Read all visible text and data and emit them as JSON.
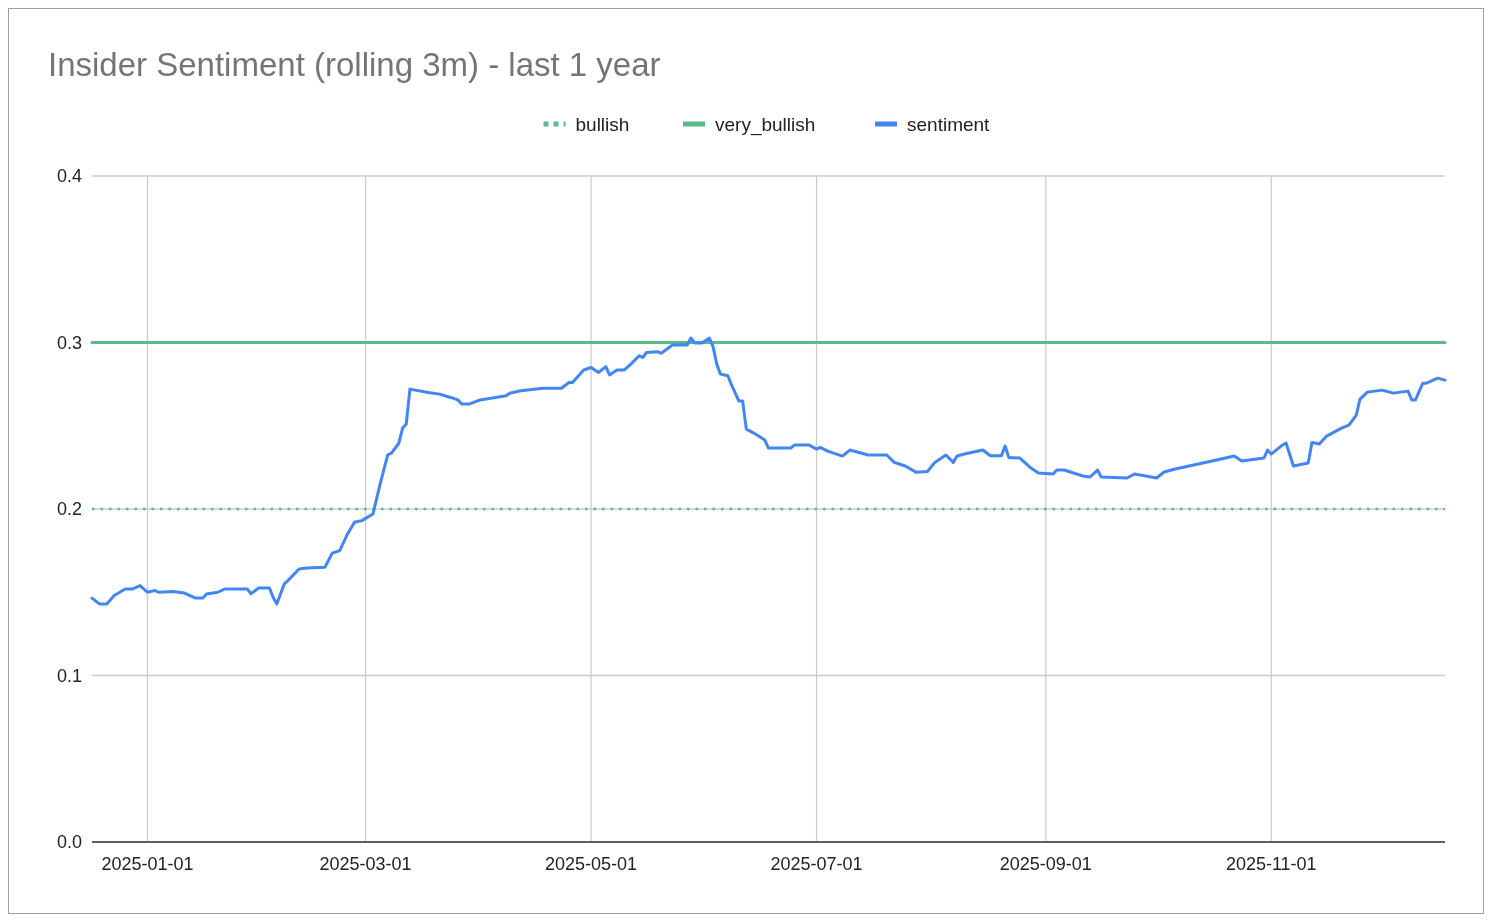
{
  "chart_data": {
    "type": "line",
    "title": "Insider Sentiment (rolling 3m) - last 1 year",
    "xlim": [
      "2024-12-17",
      "2025-12-18"
    ],
    "xticks": [
      "2025-01-01",
      "2025-03-01",
      "2025-05-01",
      "2025-07-01",
      "2025-09-01",
      "2025-11-01"
    ],
    "ylim": [
      0,
      0.4
    ],
    "yticks": [
      {
        "value": 0,
        "label": "0.0"
      },
      0.1,
      0.2,
      0.3,
      0.4
    ],
    "grid": true,
    "legend": "top",
    "series": [
      {
        "name": "bullish",
        "color": "#57bb8a",
        "line_style": "dotted",
        "x": [
          "2024-12-17",
          "2025-12-18"
        ],
        "values": [
          0.2,
          0.2
        ]
      },
      {
        "name": "very_bullish",
        "color": "#57bb8a",
        "line_style": "solid",
        "x": [
          "2024-12-17",
          "2025-12-18"
        ],
        "values": [
          0.3,
          0.3
        ]
      },
      {
        "name": "sentiment",
        "color": "#4285f4",
        "line_style": "solid",
        "x": [
          "2024-12-17",
          "2024-12-19",
          "2024-12-21",
          "2024-12-23",
          "2024-12-26",
          "2024-12-28",
          "2024-12-30",
          "2025-01-01",
          "2025-01-03",
          "2025-01-04",
          "2025-01-08",
          "2025-01-11",
          "2025-01-14",
          "2025-01-16",
          "2025-01-17",
          "2025-01-20",
          "2025-01-22",
          "2025-01-28",
          "2025-01-29",
          "2025-01-31",
          "2025-02-03",
          "2025-02-04",
          "2025-02-05",
          "2025-02-07",
          "2025-02-08",
          "2025-02-11",
          "2025-02-13",
          "2025-02-18",
          "2025-02-20",
          "2025-02-22",
          "2025-02-24",
          "2025-02-26",
          "2025-02-28",
          "2025-03-03",
          "2025-03-05",
          "2025-03-07",
          "2025-03-08",
          "2025-03-10",
          "2025-03-11",
          "2025-03-12",
          "2025-03-13",
          "2025-03-18",
          "2025-03-21",
          "2025-03-24",
          "2025-03-26",
          "2025-03-27",
          "2025-03-29",
          "2025-04-01",
          "2025-04-08",
          "2025-04-09",
          "2025-04-12",
          "2025-04-18",
          "2025-04-23",
          "2025-04-25",
          "2025-04-26",
          "2025-04-29",
          "2025-05-01",
          "2025-05-03",
          "2025-05-05",
          "2025-05-06",
          "2025-05-08",
          "2025-05-10",
          "2025-05-12",
          "2025-05-14",
          "2025-05-15",
          "2025-05-16",
          "2025-05-19",
          "2025-05-20",
          "2025-05-23",
          "2025-05-27",
          "2025-05-28",
          "2025-05-29",
          "2025-05-31",
          "2025-06-02",
          "2025-06-03",
          "2025-06-04",
          "2025-06-05",
          "2025-06-07",
          "2025-06-08",
          "2025-06-10",
          "2025-06-11",
          "2025-06-12",
          "2025-06-14",
          "2025-06-17",
          "2025-06-18",
          "2025-06-24",
          "2025-06-25",
          "2025-06-29",
          "2025-07-01",
          "2025-07-02",
          "2025-07-04",
          "2025-07-08",
          "2025-07-10",
          "2025-07-15",
          "2025-07-20",
          "2025-07-22",
          "2025-07-25",
          "2025-07-28",
          "2025-07-31",
          "2025-08-02",
          "2025-08-05",
          "2025-08-07",
          "2025-08-08",
          "2025-08-10",
          "2025-08-15",
          "2025-08-17",
          "2025-08-20",
          "2025-08-21",
          "2025-08-22",
          "2025-08-25",
          "2025-08-28",
          "2025-08-30",
          "2025-09-03",
          "2025-09-04",
          "2025-09-06",
          "2025-09-11",
          "2025-09-13",
          "2025-09-15",
          "2025-09-16",
          "2025-09-23",
          "2025-09-25",
          "2025-10-01",
          "2025-10-03",
          "2025-10-06",
          "2025-10-16",
          "2025-10-22",
          "2025-10-24",
          "2025-10-30",
          "2025-10-31",
          "2025-11-01",
          "2025-11-04",
          "2025-11-05",
          "2025-11-07",
          "2025-11-11",
          "2025-11-12",
          "2025-11-14",
          "2025-11-16",
          "2025-11-20",
          "2025-11-22",
          "2025-11-24",
          "2025-11-25",
          "2025-11-27",
          "2025-12-01",
          "2025-12-04",
          "2025-12-08",
          "2025-12-09",
          "2025-12-10",
          "2025-12-12",
          "2025-12-13",
          "2025-12-16",
          "2025-12-18"
        ],
        "values": [
          0.1465,
          0.143,
          0.143,
          0.148,
          0.152,
          0.152,
          0.154,
          0.15,
          0.151,
          0.15,
          0.1505,
          0.1495,
          0.1465,
          0.1465,
          0.149,
          0.15,
          0.152,
          0.152,
          0.149,
          0.1525,
          0.1525,
          0.147,
          0.143,
          0.155,
          0.157,
          0.164,
          0.1645,
          0.165,
          0.1735,
          0.175,
          0.1845,
          0.192,
          0.193,
          0.197,
          0.2155,
          0.2325,
          0.2335,
          0.2395,
          0.2485,
          0.251,
          0.272,
          0.27,
          0.269,
          0.267,
          0.2655,
          0.263,
          0.263,
          0.2655,
          0.268,
          0.2695,
          0.271,
          0.2725,
          0.2725,
          0.276,
          0.276,
          0.2835,
          0.285,
          0.282,
          0.2855,
          0.2805,
          0.2835,
          0.2835,
          0.2875,
          0.292,
          0.291,
          0.294,
          0.2945,
          0.2935,
          0.2985,
          0.2985,
          0.3027,
          0.2997,
          0.2997,
          0.3027,
          0.2975,
          0.287,
          0.281,
          0.28,
          0.2745,
          0.2648,
          0.2648,
          0.248,
          0.2456,
          0.2414,
          0.2366,
          0.2366,
          0.2384,
          0.2384,
          0.236,
          0.237,
          0.2348,
          0.2318,
          0.2354,
          0.2324,
          0.2324,
          0.228,
          0.2258,
          0.222,
          0.2225,
          0.228,
          0.2324,
          0.228,
          0.2318,
          0.233,
          0.2354,
          0.232,
          0.232,
          0.2378,
          0.231,
          0.2306,
          0.2246,
          0.2216,
          0.221,
          0.2234,
          0.2234,
          0.2198,
          0.2192,
          0.2234,
          0.2192,
          0.2186,
          0.221,
          0.2186,
          0.2222,
          0.224,
          0.2288,
          0.2318,
          0.2288,
          0.2306,
          0.2354,
          0.233,
          0.2384,
          0.2396,
          0.2258,
          0.2276,
          0.24,
          0.239,
          0.2438,
          0.2486,
          0.2504,
          0.2564,
          0.266,
          0.2702,
          0.2714,
          0.2696,
          0.2708,
          0.2655,
          0.2655,
          0.2756,
          0.2756,
          0.2786,
          0.2774
        ]
      }
    ]
  }
}
